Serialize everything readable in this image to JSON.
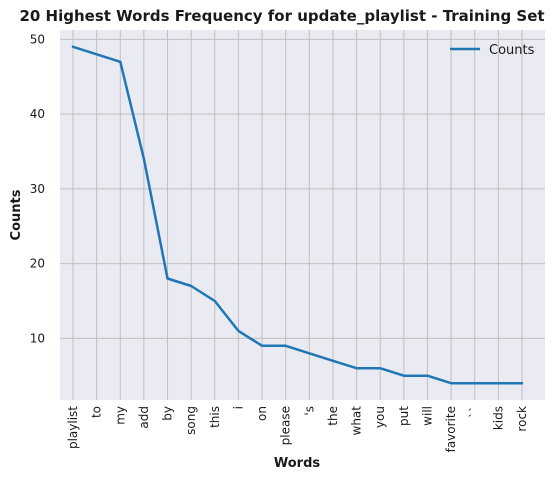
{
  "chart_data": {
    "type": "line",
    "title": "20 Highest Words Frequency for update_playlist - Training Set",
    "xlabel": "Words",
    "ylabel": "Counts",
    "categories": [
      "playlist",
      "to",
      "my",
      "add",
      "by",
      "song",
      "this",
      "i",
      "on",
      "please",
      "'s",
      "the",
      "what",
      "you",
      "put",
      "will",
      "favorite",
      "``",
      "kids",
      "rock"
    ],
    "series": [
      {
        "name": "Counts",
        "values": [
          49,
          48,
          47,
          34,
          18,
          17,
          15,
          11,
          9,
          9,
          8,
          7,
          6,
          6,
          5,
          5,
          4,
          4,
          4,
          4
        ]
      }
    ],
    "ylim": [
      1.75,
      51.25
    ],
    "yticks": [
      10,
      20,
      30,
      40,
      50
    ],
    "grid": true,
    "legend_position": "top-right",
    "colors": {
      "line": "#1f77b4",
      "plot_bg": "#eaeaf2",
      "grid": "#c0c0c0"
    }
  }
}
